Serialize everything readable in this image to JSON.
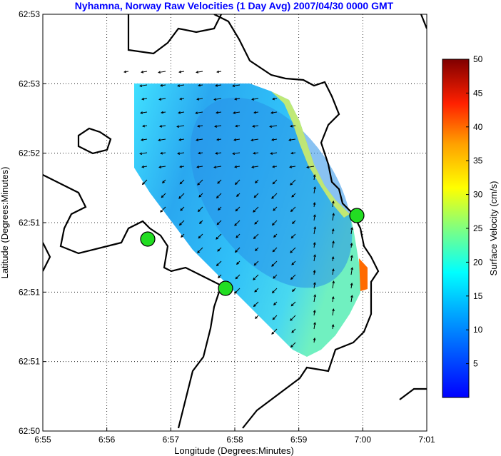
{
  "chart_data": {
    "type": "heatmap",
    "title": "Nyhamna, Norway Raw Velocities (1 Day Avg) 2007/04/30 0000 GMT",
    "xlabel": "Longitude (Degrees:Minutes)",
    "ylabel": "Latitude (Degrees:Minutes)",
    "x_tick_labels": [
      "6:55",
      "6:56",
      "6:57",
      "6:58",
      "6:59",
      "7:00",
      "7:01"
    ],
    "y_tick_labels": [
      "62:50",
      "62:51",
      "62:51",
      "62:51",
      "62:52",
      "62:53",
      "62:53"
    ],
    "grid": true,
    "colorbar": {
      "label": "Surface Velocity (cm/s)",
      "range": [
        0,
        50
      ],
      "ticks": [
        5,
        10,
        15,
        20,
        25,
        30,
        35,
        40,
        45,
        50
      ],
      "colormap": "jet",
      "placement": "right"
    },
    "field_range_cm_s": [
      5,
      30
    ],
    "markers": [
      {
        "name": "radar-site",
        "lon_min": 6.667,
        "lat_frac": 0.335,
        "color": "#22dd22"
      },
      {
        "name": "radar-site",
        "lon_min": 6.983,
        "lat_frac": 0.235,
        "color": "#22dd22"
      },
      {
        "name": "radar-site",
        "lon_min": 7.0,
        "lat_frac": 0.435,
        "color": "#22dd22"
      }
    ]
  }
}
